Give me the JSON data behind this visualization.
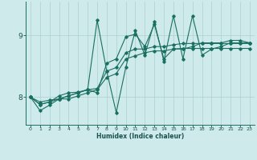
{
  "xlabel": "Humidex (Indice chaleur)",
  "bg_color": "#ceeaea",
  "line_color": "#1a7060",
  "grid_color": "#aad0d0",
  "axis_color": "#1a7060",
  "text_color": "#1a5050",
  "xlim": [
    -0.5,
    23.5
  ],
  "ylim": [
    7.55,
    9.55
  ],
  "yticks": [
    8,
    9
  ],
  "xticks": [
    0,
    1,
    2,
    3,
    4,
    5,
    6,
    7,
    8,
    9,
    10,
    11,
    12,
    13,
    14,
    15,
    16,
    17,
    18,
    19,
    20,
    21,
    22,
    23
  ],
  "series": [
    {
      "x": [
        0,
        1,
        2,
        3,
        4,
        5,
        6,
        7,
        8,
        9,
        10,
        11,
        12,
        13,
        14,
        15,
        16,
        17,
        18,
        19,
        20,
        21,
        22,
        23
      ],
      "y": [
        8.0,
        7.78,
        7.87,
        7.97,
        8.02,
        8.07,
        8.12,
        8.07,
        8.55,
        8.62,
        8.98,
        9.02,
        8.82,
        9.18,
        8.62,
        8.78,
        8.78,
        8.82,
        8.88,
        8.88,
        8.88,
        8.92,
        8.92,
        8.88
      ]
    },
    {
      "x": [
        0,
        1,
        2,
        3,
        4,
        5,
        6,
        7,
        8,
        9,
        10,
        11,
        12,
        13,
        14,
        15,
        16,
        17,
        18,
        19,
        20,
        21,
        22,
        23
      ],
      "y": [
        8.0,
        7.88,
        7.92,
        7.97,
        8.02,
        8.07,
        8.12,
        8.14,
        8.42,
        8.48,
        8.72,
        8.78,
        8.78,
        8.82,
        8.82,
        8.85,
        8.87,
        8.87,
        8.87,
        8.87,
        8.87,
        8.87,
        8.87,
        8.87
      ]
    },
    {
      "x": [
        0,
        1,
        2,
        3,
        4,
        5,
        6,
        7,
        8,
        9,
        10,
        11,
        12,
        13,
        14,
        15,
        16,
        17,
        18,
        19,
        20,
        21,
        22,
        23
      ],
      "y": [
        8.0,
        7.92,
        7.95,
        7.97,
        7.97,
        8.02,
        8.07,
        8.12,
        8.32,
        8.38,
        8.62,
        8.67,
        8.72,
        8.75,
        8.75,
        8.78,
        8.79,
        8.79,
        8.79,
        8.79,
        8.79,
        8.79,
        8.79,
        8.79
      ]
    },
    {
      "x": [
        0,
        1,
        2,
        3,
        4,
        5,
        6,
        7,
        8,
        9,
        10,
        11,
        12,
        13,
        14,
        15,
        16,
        17,
        18,
        19,
        20,
        21,
        22,
        23
      ],
      "y": [
        8.0,
        7.88,
        7.92,
        8.02,
        8.07,
        8.08,
        8.12,
        9.25,
        8.42,
        7.75,
        8.48,
        9.08,
        8.68,
        9.22,
        8.58,
        9.32,
        8.62,
        9.32,
        8.68,
        8.78,
        8.82,
        8.88,
        8.88,
        8.88
      ]
    }
  ]
}
